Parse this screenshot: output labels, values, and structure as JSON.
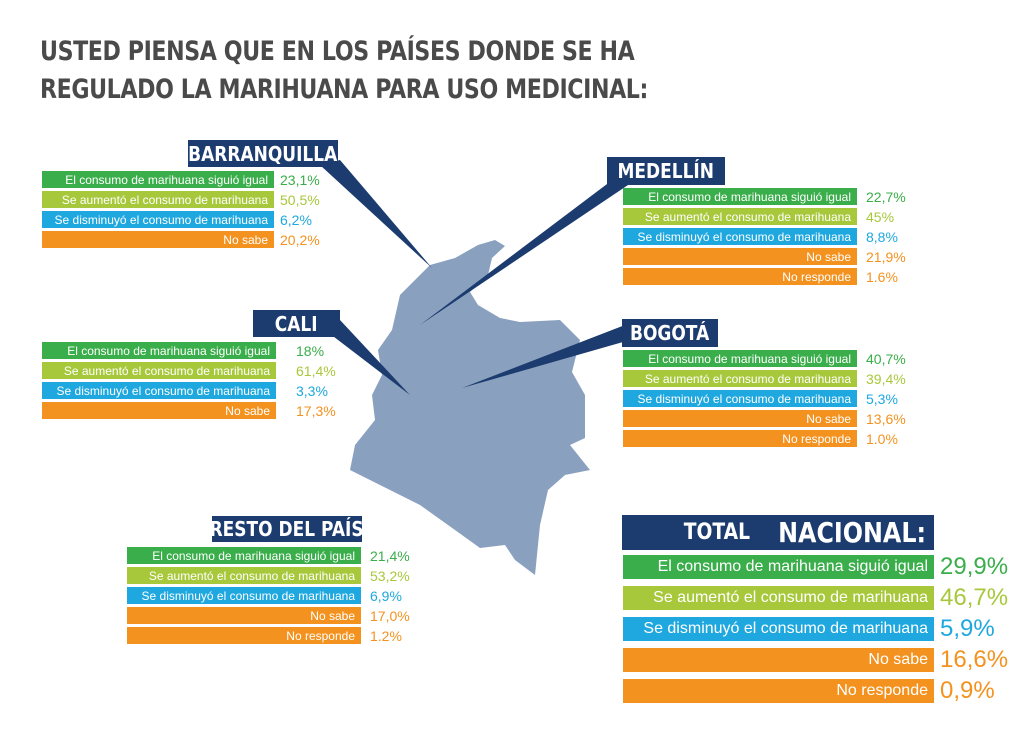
{
  "title": [
    "USTED PIENSA QUE EN LOS PAÍSES DONDE SE HA",
    "REGULADO LA MARIHUANA PARA USO MEDICINAL:"
  ],
  "panels": [
    {
      "name": "BARRANQUILLA",
      "rows": [
        {
          "label": "El consumo de marihuana siguió igual",
          "value": "23,1%"
        },
        {
          "label": "Se aumentó el consumo de marihuana",
          "value": "50,5%"
        },
        {
          "label": "Se disminuyó el consumo de marihuana",
          "value": "6,2%"
        },
        {
          "label": "No sabe",
          "value": "20,2%"
        }
      ]
    },
    {
      "name": "MEDELLÍN",
      "rows": [
        {
          "label": "El consumo de marihuana siguió igual",
          "value": "22,7%"
        },
        {
          "label": "Se aumentó el consumo de marihuana",
          "value": "45%"
        },
        {
          "label": "Se disminuyó el consumo de marihuana",
          "value": "8,8%"
        },
        {
          "label": "No sabe",
          "value": "21,9%"
        },
        {
          "label": "No responde",
          "value": "1.6%"
        }
      ]
    },
    {
      "name": "CALI",
      "rows": [
        {
          "label": "El consumo de marihuana siguió igual",
          "value": "18%"
        },
        {
          "label": "Se aumentó el consumo de marihuana",
          "value": "61,4%"
        },
        {
          "label": "Se disminuyó el consumo de marihuana",
          "value": "3,3%"
        },
        {
          "label": "No sabe",
          "value": "17,3%"
        }
      ]
    },
    {
      "name": "BOGOTÁ",
      "rows": [
        {
          "label": "El consumo de marihuana siguió igual",
          "value": "40,7%"
        },
        {
          "label": "Se aumentó el consumo de marihuana",
          "value": "39,4%"
        },
        {
          "label": "Se disminuyó el consumo de marihuana",
          "value": "5,3%"
        },
        {
          "label": "No sabe",
          "value": "13,6%"
        },
        {
          "label": "No responde",
          "value": "1.0%"
        }
      ]
    },
    {
      "name": "RESTO DEL PAÍS",
      "rows": [
        {
          "label": "El consumo de marihuana siguió igual",
          "value": "21,4%"
        },
        {
          "label": "Se aumentó el consumo de marihuana",
          "value": "53,2%"
        },
        {
          "label": "Se disminuyó el consumo de marihuana",
          "value": "6,9%"
        },
        {
          "label": "No sabe",
          "value": "17,0%"
        },
        {
          "label": "No responde",
          "value": "1.2%"
        }
      ]
    }
  ],
  "total": {
    "heading": [
      "TOTAL",
      "NACIONAL:"
    ],
    "rows": [
      {
        "label": "El consumo de marihuana siguió igual",
        "value": "29,9%"
      },
      {
        "label": "Se aumentó el consumo de marihuana",
        "value": "46,7%"
      },
      {
        "label": "Se disminuyó el consumo de marihuana",
        "value": "5,9%"
      },
      {
        "label": "No sabe",
        "value": "16,6%"
      },
      {
        "label": "No responde",
        "value": "0,9%"
      }
    ]
  }
}
